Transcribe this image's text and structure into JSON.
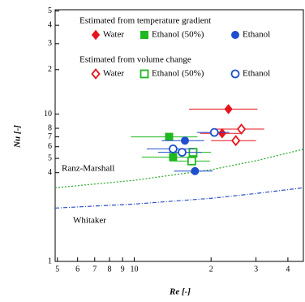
{
  "chart_data": {
    "type": "scatter",
    "x_label": "Re [-]",
    "y_label": "Nu [-]",
    "log_x": true,
    "log_y": true,
    "xlim": [
      4.9,
      46
    ],
    "ylim": [
      1,
      51
    ],
    "xticks": [
      5,
      6,
      7,
      8,
      9,
      10,
      {
        "value": 20,
        "label": "2"
      },
      {
        "value": 30,
        "label": "3"
      },
      {
        "value": 40,
        "label": "4"
      }
    ],
    "yticks": [
      1,
      4,
      5,
      6,
      7,
      8,
      10,
      {
        "value": 20,
        "label": "2"
      },
      {
        "value": 30,
        "label": "3"
      },
      {
        "value": 40,
        "label": "4"
      },
      {
        "value": 50,
        "label": "5"
      }
    ],
    "legend_groups": [
      "Estimated from temperature gradient",
      "Estimated from volume change"
    ],
    "series": [
      {
        "name": "Water",
        "group": 0,
        "marker": "diamond",
        "filled": true,
        "color": "#e8141c",
        "x": [
          23.4,
          22.1
        ],
        "y": [
          10.8,
          7.4
        ],
        "xerr": [
          7,
          4
        ]
      },
      {
        "name": "Ethanol (50%)",
        "group": 0,
        "marker": "square",
        "filled": true,
        "color": "#1fb81f",
        "x": [
          13.7,
          14.2
        ],
        "y": [
          7.0,
          5.1
        ],
        "xerr": [
          4,
          3.5
        ]
      },
      {
        "name": "Ethanol",
        "group": 0,
        "marker": "circle",
        "filled": true,
        "color": "#1f4fcc",
        "x": [
          15.8,
          17.3
        ],
        "y": [
          6.6,
          4.1
        ],
        "xerr": [
          3,
          3
        ]
      },
      {
        "name": "Water",
        "group": 1,
        "marker": "diamond",
        "filled": false,
        "color": "#e8141c",
        "x": [
          26.3,
          25.0
        ],
        "y": [
          7.9,
          6.6
        ],
        "xerr": [
          6,
          5
        ]
      },
      {
        "name": "Ethanol (50%)",
        "group": 1,
        "marker": "square",
        "filled": false,
        "color": "#1fb81f",
        "x": [
          17.0,
          16.8
        ],
        "y": [
          5.5,
          4.8
        ],
        "xerr": [
          3,
          3
        ]
      },
      {
        "name": "Ethanol",
        "group": 1,
        "marker": "circle",
        "filled": false,
        "color": "#1f4fcc",
        "x": [
          20.6,
          14.2,
          15.4
        ],
        "y": [
          7.5,
          5.8,
          5.5
        ],
        "xerr": [
          3,
          3,
          3
        ]
      }
    ],
    "curves": [
      {
        "name": "Ranz-Marshall",
        "color": "#2aa52a",
        "dash": "dotted",
        "x": [
          4.9,
          10,
          20,
          30,
          46
        ],
        "y": [
          3.16,
          3.55,
          4.19,
          4.82,
          5.77
        ]
      },
      {
        "name": "Whitaker",
        "color": "#2a4fc0",
        "dash": "dashdot",
        "x": [
          4.9,
          10,
          20,
          30,
          46
        ],
        "y": [
          2.3,
          2.45,
          2.68,
          2.89,
          3.16
        ]
      }
    ]
  }
}
